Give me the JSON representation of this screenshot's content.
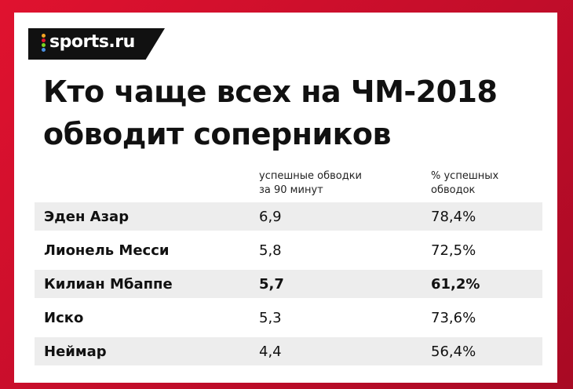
{
  "brand": {
    "name": "sports.ru",
    "dot_colors": [
      "#f5a623",
      "#e0122f",
      "#7ed321",
      "#4a90e2"
    ]
  },
  "title_lines": [
    "Кто чаще всех на ЧМ-2018",
    "обводит соперников"
  ],
  "columns": {
    "c1_lines": [
      "успешные обводки",
      "за 90 минут"
    ],
    "c2_lines": [
      "% успешных",
      "обводок"
    ]
  },
  "chart_data": {
    "type": "table",
    "title": "Кто чаще всех на ЧМ-2018 обводит соперников",
    "columns": [
      "успешные обводки за 90 минут",
      "% успешных обводок"
    ],
    "rows": [
      {
        "player": "Эден Азар",
        "dribbles_per90": "6,9",
        "success_pct": "78,4%",
        "highlight": false
      },
      {
        "player": "Лионель Месси",
        "dribbles_per90": "5,8",
        "success_pct": "72,5%",
        "highlight": false
      },
      {
        "player": "Килиан Мбаппе",
        "dribbles_per90": "5,7",
        "success_pct": "61,2%",
        "highlight": true
      },
      {
        "player": "Иско",
        "dribbles_per90": "5,3",
        "success_pct": "73,6%",
        "highlight": false
      },
      {
        "player": "Неймар",
        "dribbles_per90": "4,4",
        "success_pct": "56,4%",
        "highlight": false
      }
    ]
  }
}
